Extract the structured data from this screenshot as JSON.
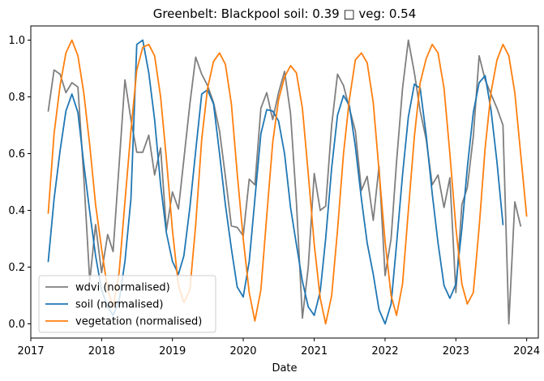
{
  "chart_data": {
    "type": "line",
    "title": "Greenbelt: Blackpool soil: 0.39 □ veg: 0.54",
    "xlabel": "Date",
    "ylabel": "",
    "xlim": [
      "2017-01-01",
      "2024-03-01"
    ],
    "ylim": [
      -0.05,
      1.05
    ],
    "x_ticks": [
      "2017",
      "2018",
      "2019",
      "2020",
      "2021",
      "2022",
      "2023",
      "2024"
    ],
    "y_ticks": [
      "0.0",
      "0.2",
      "0.4",
      "0.6",
      "0.8",
      "1.0"
    ],
    "grid": false,
    "legend_position": "lower-left",
    "series": [
      {
        "name": "wdvi (normalised)",
        "color": "#7f7f7f",
        "points": [
          [
            "2017-04-01",
            0.75
          ],
          [
            "2017-05-01",
            0.895
          ],
          [
            "2017-06-01",
            0.88
          ],
          [
            "2017-07-01",
            0.815
          ],
          [
            "2017-08-01",
            0.85
          ],
          [
            "2017-09-01",
            0.835
          ],
          [
            "2017-10-01",
            0.52
          ],
          [
            "2017-11-01",
            0.15
          ],
          [
            "2017-12-01",
            0.35
          ],
          [
            "2018-01-01",
            0.18
          ],
          [
            "2018-02-01",
            0.315
          ],
          [
            "2018-03-01",
            0.255
          ],
          [
            "2018-04-01",
            0.56
          ],
          [
            "2018-05-01",
            0.86
          ],
          [
            "2018-06-01",
            0.72
          ],
          [
            "2018-07-01",
            0.605
          ],
          [
            "2018-08-01",
            0.605
          ],
          [
            "2018-09-01",
            0.665
          ],
          [
            "2018-10-01",
            0.525
          ],
          [
            "2018-11-01",
            0.62
          ],
          [
            "2018-12-01",
            0.33
          ],
          [
            "2019-01-01",
            0.465
          ],
          [
            "2019-02-01",
            0.405
          ],
          [
            "2019-03-01",
            0.58
          ],
          [
            "2019-04-01",
            0.775
          ],
          [
            "2019-05-01",
            0.94
          ],
          [
            "2019-06-01",
            0.88
          ],
          [
            "2019-07-01",
            0.84
          ],
          [
            "2019-08-01",
            0.78
          ],
          [
            "2019-09-01",
            0.68
          ],
          [
            "2019-10-01",
            0.52
          ],
          [
            "2019-11-01",
            0.345
          ],
          [
            "2019-12-01",
            0.34
          ],
          [
            "2020-01-01",
            0.31
          ],
          [
            "2020-02-01",
            0.51
          ],
          [
            "2020-03-01",
            0.49
          ],
          [
            "2020-04-01",
            0.76
          ],
          [
            "2020-05-01",
            0.815
          ],
          [
            "2020-06-01",
            0.72
          ],
          [
            "2020-07-01",
            0.815
          ],
          [
            "2020-08-01",
            0.89
          ],
          [
            "2020-09-01",
            0.74
          ],
          [
            "2020-10-01",
            0.43
          ],
          [
            "2020-11-01",
            0.02
          ],
          [
            "2020-12-01",
            0.2
          ],
          [
            "2021-01-01",
            0.53
          ],
          [
            "2021-02-01",
            0.4
          ],
          [
            "2021-03-01",
            0.415
          ],
          [
            "2021-04-01",
            0.7
          ],
          [
            "2021-05-01",
            0.88
          ],
          [
            "2021-06-01",
            0.84
          ],
          [
            "2021-07-01",
            0.76
          ],
          [
            "2021-08-01",
            0.68
          ],
          [
            "2021-09-01",
            0.47
          ],
          [
            "2021-10-01",
            0.52
          ],
          [
            "2021-11-01",
            0.365
          ],
          [
            "2021-12-01",
            0.555
          ],
          [
            "2022-01-01",
            0.17
          ],
          [
            "2022-02-01",
            0.3
          ],
          [
            "2022-03-01",
            0.57
          ],
          [
            "2022-04-01",
            0.83
          ],
          [
            "2022-05-01",
            1.0
          ],
          [
            "2022-06-01",
            0.885
          ],
          [
            "2022-07-01",
            0.75
          ],
          [
            "2022-08-01",
            0.65
          ],
          [
            "2022-09-01",
            0.49
          ],
          [
            "2022-10-01",
            0.525
          ],
          [
            "2022-11-01",
            0.41
          ],
          [
            "2022-12-01",
            0.515
          ],
          [
            "2023-01-01",
            0.11
          ],
          [
            "2023-02-01",
            0.42
          ],
          [
            "2023-03-01",
            0.48
          ],
          [
            "2023-04-01",
            0.66
          ],
          [
            "2023-05-01",
            0.945
          ],
          [
            "2023-06-01",
            0.86
          ],
          [
            "2023-07-01",
            0.81
          ],
          [
            "2023-08-01",
            0.76
          ],
          [
            "2023-09-01",
            0.7
          ],
          [
            "2023-10-01",
            0.0
          ],
          [
            "2023-11-01",
            0.43
          ],
          [
            "2023-12-01",
            0.345
          ]
        ]
      },
      {
        "name": "soil (normalised)",
        "color": "#1f77b4",
        "points": [
          [
            "2017-04-01",
            0.22
          ],
          [
            "2017-05-01",
            0.44
          ],
          [
            "2017-06-01",
            0.61
          ],
          [
            "2017-07-01",
            0.75
          ],
          [
            "2017-08-01",
            0.81
          ],
          [
            "2017-09-01",
            0.745
          ],
          [
            "2017-10-01",
            0.565
          ],
          [
            "2017-11-01",
            0.395
          ],
          [
            "2017-12-01",
            0.24
          ],
          [
            "2018-01-01",
            0.12
          ],
          [
            "2018-02-01",
            0.06
          ],
          [
            "2018-03-01",
            0.03
          ],
          [
            "2018-04-01",
            0.08
          ],
          [
            "2018-05-01",
            0.22
          ],
          [
            "2018-06-01",
            0.44
          ],
          [
            "2018-07-01",
            0.985
          ],
          [
            "2018-08-01",
            1.0
          ],
          [
            "2018-09-01",
            0.885
          ],
          [
            "2018-10-01",
            0.72
          ],
          [
            "2018-11-01",
            0.49
          ],
          [
            "2018-12-01",
            0.32
          ],
          [
            "2019-01-01",
            0.22
          ],
          [
            "2019-02-01",
            0.175
          ],
          [
            "2019-03-01",
            0.24
          ],
          [
            "2019-04-01",
            0.41
          ],
          [
            "2019-05-01",
            0.61
          ],
          [
            "2019-06-01",
            0.81
          ],
          [
            "2019-07-01",
            0.825
          ],
          [
            "2019-08-01",
            0.775
          ],
          [
            "2019-09-01",
            0.6
          ],
          [
            "2019-10-01",
            0.42
          ],
          [
            "2019-11-01",
            0.265
          ],
          [
            "2019-12-01",
            0.13
          ],
          [
            "2020-01-01",
            0.095
          ],
          [
            "2020-02-01",
            0.22
          ],
          [
            "2020-03-01",
            0.44
          ],
          [
            "2020-04-01",
            0.67
          ],
          [
            "2020-05-01",
            0.755
          ],
          [
            "2020-06-01",
            0.75
          ],
          [
            "2020-07-01",
            0.715
          ],
          [
            "2020-08-01",
            0.6
          ],
          [
            "2020-09-01",
            0.41
          ],
          [
            "2020-10-01",
            0.28
          ],
          [
            "2020-11-01",
            0.15
          ],
          [
            "2020-12-01",
            0.06
          ],
          [
            "2021-01-01",
            0.03
          ],
          [
            "2021-02-01",
            0.115
          ],
          [
            "2021-03-01",
            0.3
          ],
          [
            "2021-04-01",
            0.55
          ],
          [
            "2021-05-01",
            0.735
          ],
          [
            "2021-06-01",
            0.805
          ],
          [
            "2021-07-01",
            0.77
          ],
          [
            "2021-08-01",
            0.625
          ],
          [
            "2021-09-01",
            0.44
          ],
          [
            "2021-10-01",
            0.285
          ],
          [
            "2021-11-01",
            0.175
          ],
          [
            "2021-12-01",
            0.05
          ],
          [
            "2022-01-01",
            0.0
          ],
          [
            "2022-02-01",
            0.07
          ],
          [
            "2022-03-01",
            0.28
          ],
          [
            "2022-04-01",
            0.525
          ],
          [
            "2022-05-01",
            0.73
          ],
          [
            "2022-06-01",
            0.845
          ],
          [
            "2022-07-01",
            0.83
          ],
          [
            "2022-08-01",
            0.665
          ],
          [
            "2022-09-01",
            0.46
          ],
          [
            "2022-10-01",
            0.285
          ],
          [
            "2022-11-01",
            0.135
          ],
          [
            "2022-12-01",
            0.09
          ],
          [
            "2023-01-01",
            0.14
          ],
          [
            "2023-02-01",
            0.335
          ],
          [
            "2023-03-01",
            0.55
          ],
          [
            "2023-04-01",
            0.745
          ],
          [
            "2023-05-01",
            0.85
          ],
          [
            "2023-06-01",
            0.875
          ],
          [
            "2023-07-01",
            0.755
          ],
          [
            "2023-08-01",
            0.57
          ],
          [
            "2023-09-01",
            0.35
          ]
        ]
      },
      {
        "name": "vegetation (normalised)",
        "color": "#ff7f0e",
        "points": [
          [
            "2017-04-01",
            0.39
          ],
          [
            "2017-05-01",
            0.67
          ],
          [
            "2017-06-01",
            0.84
          ],
          [
            "2017-07-01",
            0.955
          ],
          [
            "2017-08-01",
            1.0
          ],
          [
            "2017-09-01",
            0.945
          ],
          [
            "2017-10-01",
            0.815
          ],
          [
            "2017-11-01",
            0.63
          ],
          [
            "2017-12-01",
            0.42
          ],
          [
            "2018-01-01",
            0.265
          ],
          [
            "2018-02-01",
            0.12
          ],
          [
            "2018-03-01",
            0.06
          ],
          [
            "2018-04-01",
            0.18
          ],
          [
            "2018-05-01",
            0.43
          ],
          [
            "2018-06-01",
            0.68
          ],
          [
            "2018-07-01",
            0.895
          ],
          [
            "2018-08-01",
            0.975
          ],
          [
            "2018-09-01",
            0.985
          ],
          [
            "2018-10-01",
            0.945
          ],
          [
            "2018-11-01",
            0.8
          ],
          [
            "2018-12-01",
            0.58
          ],
          [
            "2019-01-01",
            0.33
          ],
          [
            "2019-02-01",
            0.135
          ],
          [
            "2019-03-01",
            0.075
          ],
          [
            "2019-04-01",
            0.12
          ],
          [
            "2019-05-01",
            0.35
          ],
          [
            "2019-06-01",
            0.65
          ],
          [
            "2019-07-01",
            0.83
          ],
          [
            "2019-08-01",
            0.925
          ],
          [
            "2019-09-01",
            0.955
          ],
          [
            "2019-10-01",
            0.915
          ],
          [
            "2019-11-01",
            0.775
          ],
          [
            "2019-12-01",
            0.53
          ],
          [
            "2020-01-01",
            0.3
          ],
          [
            "2020-02-01",
            0.11
          ],
          [
            "2020-03-01",
            0.01
          ],
          [
            "2020-04-01",
            0.12
          ],
          [
            "2020-05-01",
            0.38
          ],
          [
            "2020-06-01",
            0.64
          ],
          [
            "2020-07-01",
            0.79
          ],
          [
            "2020-08-01",
            0.87
          ],
          [
            "2020-09-01",
            0.91
          ],
          [
            "2020-10-01",
            0.885
          ],
          [
            "2020-11-01",
            0.76
          ],
          [
            "2020-12-01",
            0.53
          ],
          [
            "2021-01-01",
            0.28
          ],
          [
            "2021-02-01",
            0.09
          ],
          [
            "2021-03-01",
            0.0
          ],
          [
            "2021-04-01",
            0.1
          ],
          [
            "2021-05-01",
            0.33
          ],
          [
            "2021-06-01",
            0.6
          ],
          [
            "2021-07-01",
            0.79
          ],
          [
            "2021-08-01",
            0.93
          ],
          [
            "2021-09-01",
            0.955
          ],
          [
            "2021-10-01",
            0.92
          ],
          [
            "2021-11-01",
            0.78
          ],
          [
            "2021-12-01",
            0.54
          ],
          [
            "2022-01-01",
            0.29
          ],
          [
            "2022-02-01",
            0.1
          ],
          [
            "2022-03-01",
            0.03
          ],
          [
            "2022-04-01",
            0.14
          ],
          [
            "2022-05-01",
            0.4
          ],
          [
            "2022-06-01",
            0.66
          ],
          [
            "2022-07-01",
            0.85
          ],
          [
            "2022-08-01",
            0.935
          ],
          [
            "2022-09-01",
            0.985
          ],
          [
            "2022-10-01",
            0.955
          ],
          [
            "2022-11-01",
            0.83
          ],
          [
            "2022-12-01",
            0.6
          ],
          [
            "2023-01-01",
            0.34
          ],
          [
            "2023-02-01",
            0.14
          ],
          [
            "2023-03-01",
            0.07
          ],
          [
            "2023-04-01",
            0.11
          ],
          [
            "2023-05-01",
            0.34
          ],
          [
            "2023-06-01",
            0.62
          ],
          [
            "2023-07-01",
            0.815
          ],
          [
            "2023-08-01",
            0.93
          ],
          [
            "2023-09-01",
            0.985
          ],
          [
            "2023-10-01",
            0.945
          ],
          [
            "2023-11-01",
            0.815
          ],
          [
            "2023-12-01",
            0.6
          ],
          [
            "2024-01-01",
            0.38
          ]
        ]
      }
    ]
  }
}
